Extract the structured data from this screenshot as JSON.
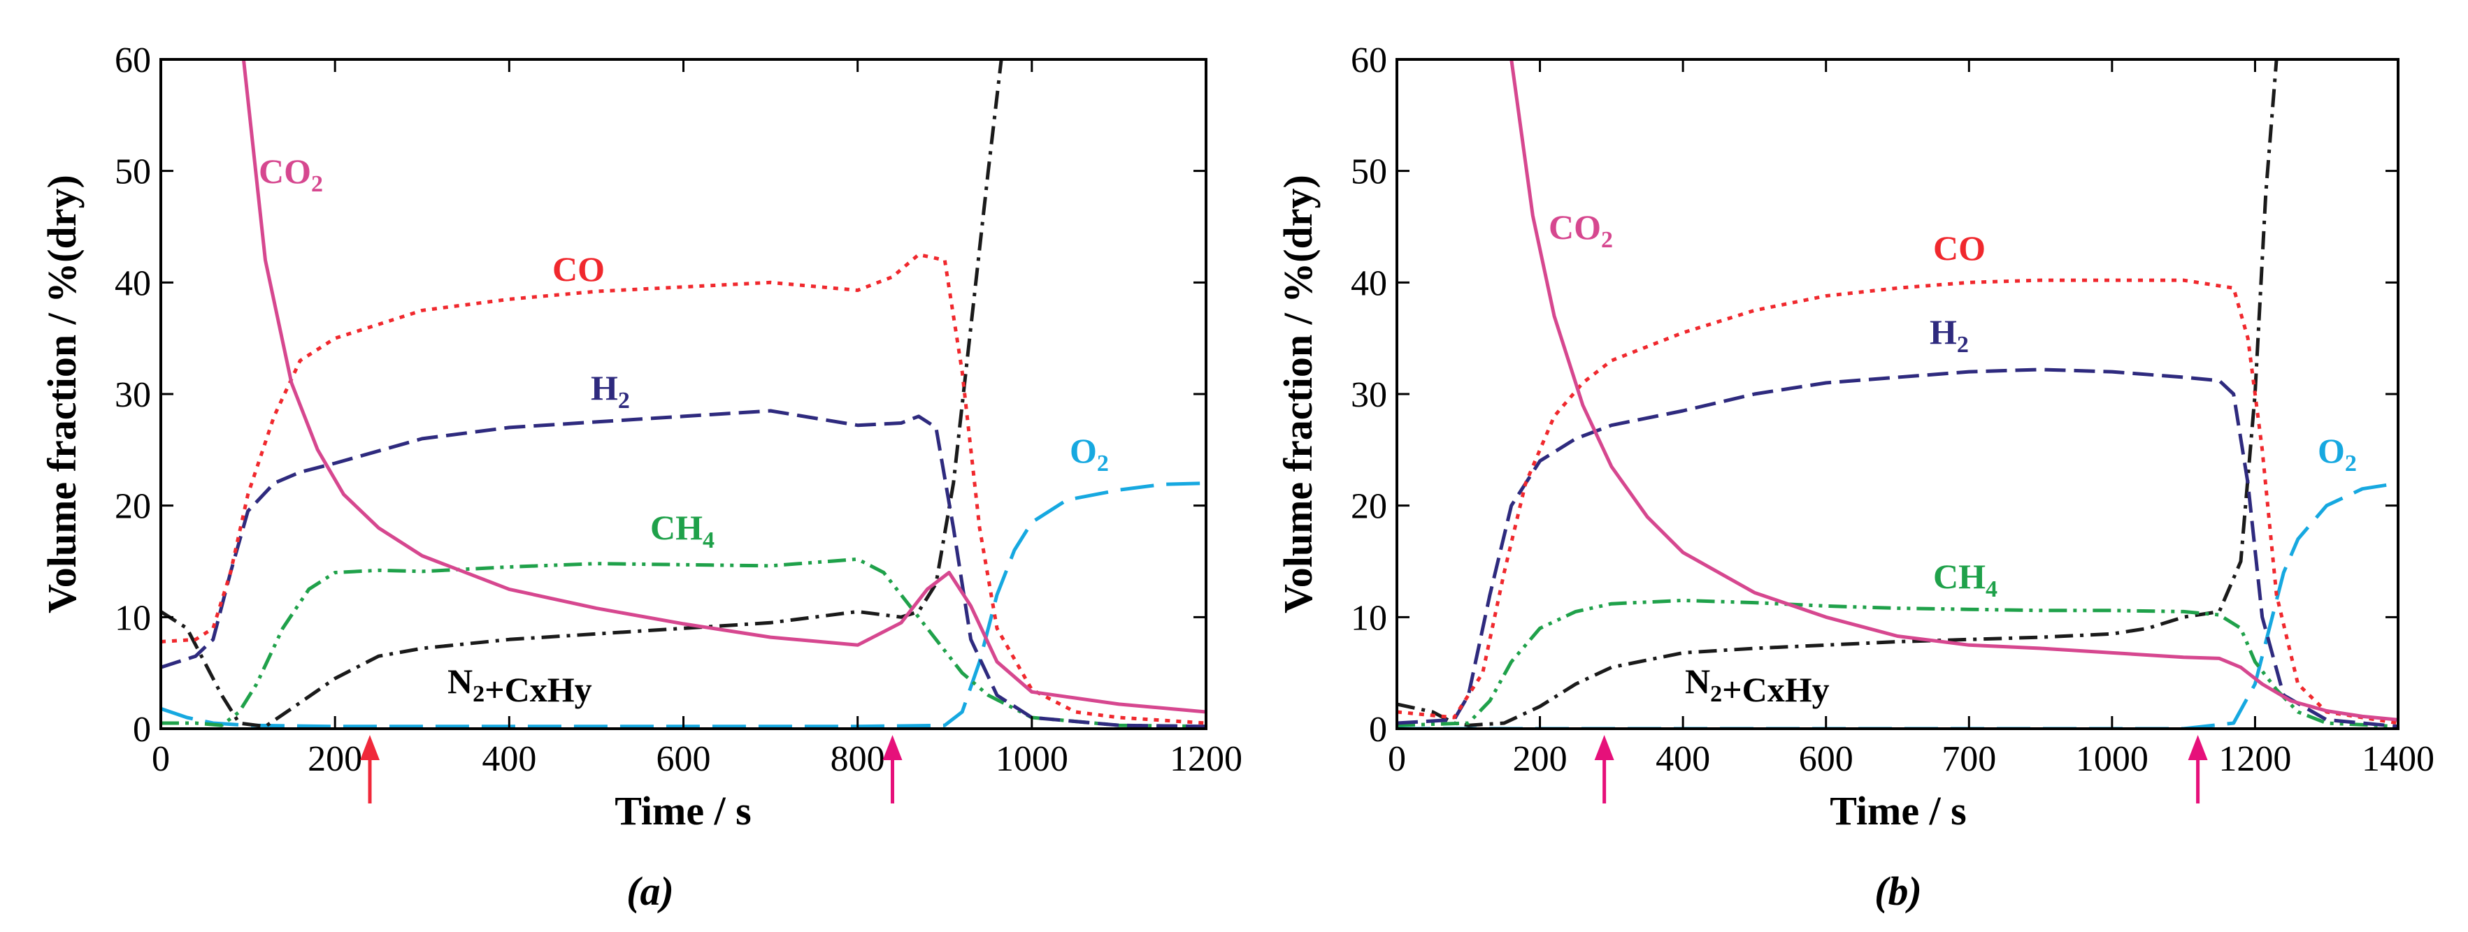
{
  "colors": {
    "CO2": "#d6478f",
    "CO": "#f0282d",
    "H2": "#2e2a7e",
    "CH4": "#1fa14a",
    "N2CxHy": "#1a1a1a",
    "O2": "#16a8e0",
    "arrow_red": "#f0283a",
    "arrow_magenta": "#e6107a"
  },
  "chart_data": [
    {
      "type": "line",
      "caption": "(a)",
      "xlabel": "Time / s",
      "ylabel": "Volume fraction / %(dry)",
      "xlim": [
        0,
        1200
      ],
      "ylim": [
        0,
        60
      ],
      "xticks": [
        0,
        200,
        400,
        600,
        800,
        1000,
        1200
      ],
      "yticks": [
        0,
        10,
        20,
        30,
        40,
        50,
        60
      ],
      "arrows_at_x": [
        240,
        840
      ],
      "series": [
        {
          "name": "CO2",
          "key": "CO2",
          "style": "solid",
          "x": [
            95,
            120,
            150,
            180,
            210,
            250,
            300,
            400,
            500,
            600,
            700,
            800,
            850,
            880,
            905,
            930,
            960,
            1000,
            1100,
            1200
          ],
          "y": [
            60,
            42,
            31,
            25,
            21,
            18,
            15.5,
            12.5,
            10.8,
            9.4,
            8.2,
            7.5,
            9.5,
            12.5,
            14,
            11,
            6,
            3.3,
            2.2,
            1.5
          ]
        },
        {
          "name": "CO",
          "key": "CO",
          "style": "dotted",
          "x": [
            0,
            40,
            60,
            80,
            100,
            130,
            160,
            200,
            300,
            400,
            500,
            600,
            700,
            800,
            840,
            870,
            900,
            920,
            940,
            960,
            1000,
            1050,
            1100,
            1200
          ],
          "y": [
            7.8,
            8,
            9,
            14,
            21,
            28,
            33,
            35,
            37.5,
            38.5,
            39.2,
            39.6,
            40,
            39.3,
            40.5,
            42.5,
            42,
            32,
            18,
            9,
            3.5,
            1.5,
            1,
            0.5
          ]
        },
        {
          "name": "H2",
          "key": "H2",
          "style": "dashed",
          "x": [
            0,
            40,
            60,
            80,
            100,
            130,
            160,
            200,
            300,
            400,
            500,
            600,
            700,
            800,
            850,
            870,
            890,
            910,
            930,
            960,
            1000,
            1100,
            1200
          ],
          "y": [
            5.5,
            6.5,
            8,
            14,
            19.5,
            22,
            23,
            23.8,
            26,
            27,
            27.5,
            28,
            28.5,
            27.2,
            27.4,
            28,
            27,
            18,
            8,
            3,
            1,
            0.3,
            0.2
          ]
        },
        {
          "name": "CH4",
          "key": "CH4",
          "style": "dashdotdot",
          "x": [
            0,
            40,
            70,
            90,
            110,
            140,
            170,
            200,
            250,
            300,
            400,
            500,
            600,
            700,
            800,
            830,
            860,
            890,
            920,
            950,
            1000,
            1100,
            1200
          ],
          "y": [
            0.5,
            0.5,
            0.3,
            1.5,
            4,
            9,
            12.5,
            14,
            14.2,
            14.1,
            14.5,
            14.8,
            14.7,
            14.6,
            15.2,
            14,
            11,
            8,
            5,
            3,
            1,
            0.3,
            0.2
          ]
        },
        {
          "name": "N2+CxHy",
          "key": "N2CxHy",
          "style": "dashdot",
          "x": [
            0,
            30,
            50,
            70,
            90,
            120,
            150,
            200,
            250,
            300,
            400,
            500,
            600,
            700,
            800,
            850,
            870,
            890,
            910,
            930,
            950,
            965
          ],
          "y": [
            10.5,
            9,
            6,
            3,
            0.5,
            0.2,
            1.8,
            4.5,
            6.5,
            7.2,
            8,
            8.5,
            9,
            9.5,
            10.5,
            10,
            10.5,
            13,
            22,
            36,
            50,
            60
          ]
        },
        {
          "name": "O2",
          "key": "O2",
          "style": "longdash",
          "x": [
            0,
            30,
            60,
            100,
            200,
            400,
            600,
            800,
            900,
            920,
            940,
            960,
            980,
            1000,
            1040,
            1100,
            1150,
            1200
          ],
          "y": [
            1.8,
            1,
            0.5,
            0.3,
            0.2,
            0.2,
            0.2,
            0.2,
            0.3,
            1.5,
            6,
            12,
            16,
            18.5,
            20.5,
            21.4,
            21.9,
            22
          ]
        }
      ]
    },
    {
      "type": "line",
      "caption": "(b)",
      "xlabel": "Time / s",
      "ylabel": "Volume fraction / %(dry)",
      "xlim": [
        0,
        1400
      ],
      "ylim": [
        0,
        60
      ],
      "xticks": [
        0,
        200,
        400,
        600,
        700,
        1000,
        1200,
        1400
      ],
      "yticks": [
        0,
        10,
        20,
        30,
        40,
        50,
        60
      ],
      "arrows_at_x": [
        290,
        1120
      ],
      "series": [
        {
          "name": "CO2",
          "key": "CO2",
          "style": "solid",
          "x": [
            160,
            190,
            220,
            260,
            300,
            350,
            400,
            500,
            600,
            700,
            800,
            900,
            1000,
            1100,
            1150,
            1180,
            1210,
            1250,
            1300,
            1350,
            1400
          ],
          "y": [
            60,
            46,
            37,
            29,
            23.5,
            19,
            15.8,
            12.2,
            10,
            8.3,
            7.5,
            7.2,
            6.8,
            6.4,
            6.3,
            5.5,
            4,
            2.5,
            1.6,
            1.1,
            0.8
          ]
        },
        {
          "name": "CO",
          "key": "CO",
          "style": "dotted",
          "x": [
            0,
            80,
            120,
            150,
            180,
            220,
            260,
            300,
            400,
            500,
            600,
            700,
            800,
            900,
            1000,
            1100,
            1170,
            1190,
            1210,
            1230,
            1260,
            1300,
            1400
          ],
          "y": [
            1.5,
            1,
            5,
            14,
            22,
            28,
            31,
            33,
            35.5,
            37.5,
            38.8,
            39.5,
            40,
            40.2,
            40.2,
            40.2,
            39.5,
            35,
            25,
            12,
            4,
            1.5,
            0.5
          ]
        },
        {
          "name": "H2",
          "key": "H2",
          "style": "dashed",
          "x": [
            0,
            80,
            100,
            130,
            160,
            200,
            250,
            300,
            400,
            500,
            600,
            700,
            800,
            900,
            1000,
            1100,
            1150,
            1170,
            1190,
            1210,
            1240,
            1300,
            1400
          ],
          "y": [
            0.5,
            0.8,
            3,
            12,
            20,
            24,
            26,
            27.2,
            28.5,
            30,
            31,
            31.5,
            32,
            32.2,
            32,
            31.5,
            31.2,
            30,
            22,
            10,
            3,
            0.8,
            0.2
          ]
        },
        {
          "name": "CH4",
          "key": "CH4",
          "style": "dashdotdot",
          "x": [
            0,
            100,
            130,
            160,
            200,
            250,
            300,
            400,
            500,
            600,
            700,
            800,
            900,
            1000,
            1100,
            1150,
            1180,
            1200,
            1230,
            1260,
            1300,
            1400
          ],
          "y": [
            0.3,
            0.5,
            2.5,
            6,
            9,
            10.5,
            11.2,
            11.5,
            11.3,
            11,
            10.8,
            10.7,
            10.6,
            10.6,
            10.5,
            10.2,
            9,
            6,
            3.5,
            1.5,
            0.5,
            0.2
          ]
        },
        {
          "name": "N2+CxHy",
          "key": "N2CxHy",
          "style": "dashdot",
          "x": [
            0,
            50,
            80,
            100,
            150,
            200,
            250,
            300,
            400,
            500,
            600,
            700,
            800,
            900,
            1000,
            1050,
            1100,
            1150,
            1180,
            1200,
            1215,
            1230
          ],
          "y": [
            2.2,
            1.5,
            0.5,
            0.3,
            0.5,
            2,
            4,
            5.5,
            6.8,
            7.2,
            7.5,
            7.8,
            8,
            8.2,
            8.5,
            9,
            10,
            10.5,
            15,
            30,
            48,
            60
          ]
        },
        {
          "name": "O2",
          "key": "O2",
          "style": "longdash",
          "x": [
            0,
            100,
            200,
            400,
            600,
            800,
            1000,
            1100,
            1170,
            1200,
            1220,
            1240,
            1260,
            1300,
            1350,
            1400
          ],
          "y": [
            0,
            0,
            0,
            0,
            0,
            0,
            0,
            0,
            0.5,
            4,
            9,
            14,
            17,
            20,
            21.5,
            22
          ]
        }
      ]
    }
  ]
}
